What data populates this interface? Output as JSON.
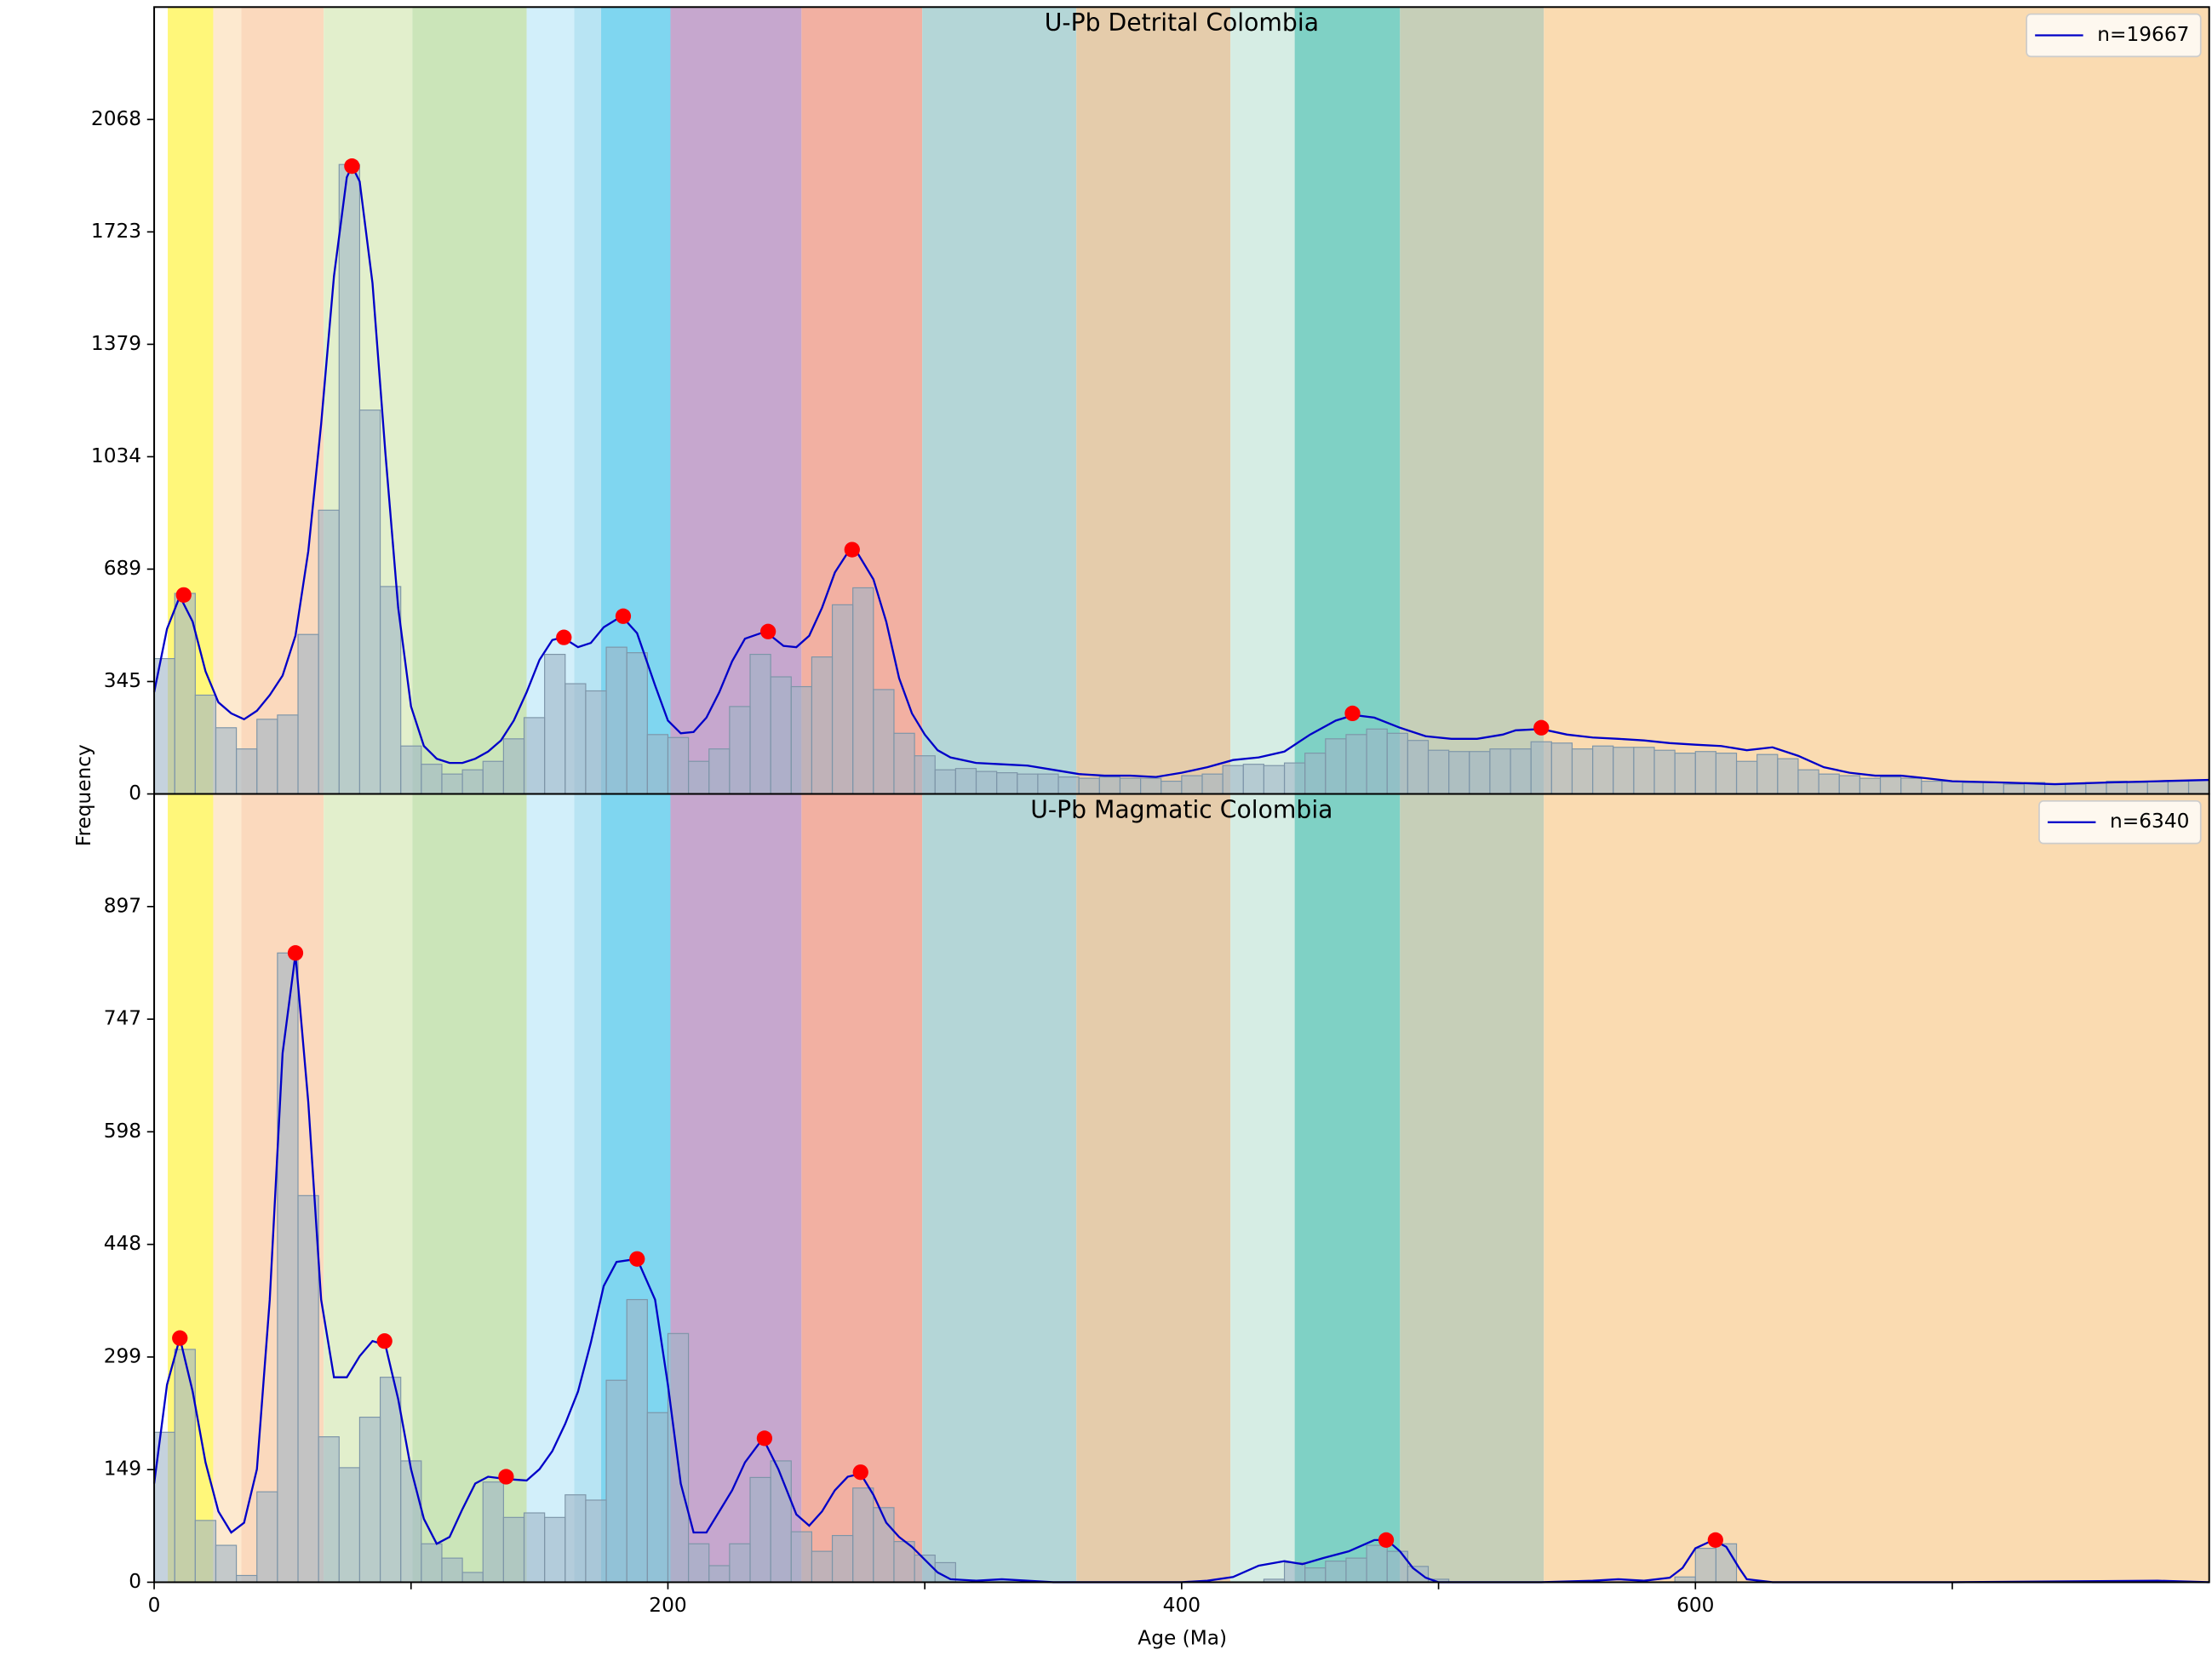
{
  "chart_data": [
    {
      "type": "histogram",
      "title": "U-Pb Detrital Colombia",
      "ylabel": "Frequency",
      "xlim": [
        0,
        800
      ],
      "ylim": [
        0,
        2412.7
      ],
      "yticks": [
        0,
        {
          "value": 344.67,
          "label": "345"
        },
        {
          "value": 689.33,
          "label": "689"
        },
        1034,
        {
          "value": 1378.67,
          "label": "1379"
        },
        {
          "value": 1723.33,
          "label": "1723"
        },
        2068
      ],
      "bands": [
        {
          "start": 5.3,
          "end": 23,
          "color": "#fff77a"
        },
        {
          "start": 23,
          "end": 33.9,
          "color": "#fde9cf"
        },
        {
          "start": 33.9,
          "end": 66,
          "color": "#fbd9bd"
        },
        {
          "start": 66,
          "end": 100.5,
          "color": "#e2efcc"
        },
        {
          "start": 100.5,
          "end": 145,
          "color": "#cbe5b9"
        },
        {
          "start": 145,
          "end": 163.5,
          "color": "#d2effa"
        },
        {
          "start": 163.5,
          "end": 174,
          "color": "#b8e4f3"
        },
        {
          "start": 174,
          "end": 201,
          "color": "#7fd6f0"
        },
        {
          "start": 201,
          "end": 252,
          "color": "#c6a7ce"
        },
        {
          "start": 252,
          "end": 299,
          "color": "#f2b0a2"
        },
        {
          "start": 299,
          "end": 359,
          "color": "#b4d6d7"
        },
        {
          "start": 359,
          "end": 419,
          "color": "#e5ccab"
        },
        {
          "start": 419,
          "end": 444,
          "color": "#d6ede4"
        },
        {
          "start": 444,
          "end": 485,
          "color": "#7fd1c5"
        },
        {
          "start": 485,
          "end": 541,
          "color": "#c6cfb8"
        },
        {
          "start": 541,
          "end": 800,
          "color": "#fadbb1"
        }
      ],
      "bins": [
        0,
        8,
        16,
        24,
        32,
        40,
        48,
        56,
        64,
        72,
        80,
        88,
        96,
        104,
        112,
        120,
        128,
        136,
        144,
        152,
        160,
        168,
        176,
        184,
        192,
        200,
        208,
        216,
        224,
        232,
        240,
        248,
        256,
        264,
        272,
        280,
        288,
        296,
        304,
        312,
        320,
        328,
        336,
        344,
        352,
        360,
        368,
        376,
        384,
        392,
        400,
        408,
        416,
        424,
        432,
        440,
        448,
        456,
        464,
        472,
        480,
        488,
        496,
        504,
        512,
        520,
        528,
        536,
        544,
        552,
        560,
        568,
        576,
        584,
        592,
        600,
        608,
        616,
        624,
        632,
        640,
        648,
        656,
        664,
        672,
        680,
        688,
        696,
        704,
        712,
        720,
        728,
        736,
        744,
        752,
        760,
        768,
        776,
        784,
        792,
        800
      ],
      "values": [
        415,
        615,
        303,
        203,
        138,
        229,
        242,
        489,
        870,
        1930,
        1177,
        636,
        147,
        91,
        61,
        74,
        100,
        169,
        234,
        428,
        338,
        316,
        450,
        433,
        182,
        173,
        100,
        138,
        268,
        428,
        359,
        329,
        420,
        580,
        632,
        320,
        186,
        117,
        74,
        78,
        69,
        65,
        61,
        61,
        52,
        48,
        52,
        48,
        48,
        39,
        56,
        61,
        87,
        91,
        87,
        95,
        125,
        169,
        182,
        199,
        186,
        164,
        134,
        130,
        130,
        138,
        138,
        160,
        156,
        138,
        147,
        143,
        143,
        134,
        125,
        130,
        125,
        100,
        121,
        108,
        74,
        61,
        56,
        48,
        52,
        48,
        39,
        39,
        35,
        35,
        30,
        35,
        30,
        30,
        35,
        39,
        35,
        39,
        39,
        43
      ],
      "bar_color": "#9fb4c7",
      "series": [
        {
          "name": "n=19667",
          "color": "#0000c8",
          "x": [
            0,
            5,
            10,
            15,
            20,
            25,
            30,
            35,
            40,
            45,
            50,
            55,
            60,
            65,
            70,
            75,
            77,
            80,
            85,
            90,
            95,
            100,
            105,
            110,
            115,
            120,
            125,
            130,
            135,
            140,
            145,
            150,
            155,
            159,
            165,
            170,
            175,
            182,
            188,
            195,
            200,
            205,
            210,
            215,
            220,
            225,
            230,
            238,
            245,
            250,
            255,
            260,
            265,
            270,
            273,
            280,
            285,
            290,
            295,
            300,
            305,
            310,
            320,
            330,
            340,
            350,
            360,
            370,
            380,
            390,
            400,
            410,
            420,
            430,
            440,
            450,
            460,
            467,
            475,
            485,
            495,
            505,
            515,
            525,
            530,
            540,
            550,
            560,
            570,
            580,
            590,
            600,
            610,
            620,
            630,
            640,
            650,
            660,
            670,
            680,
            690,
            700,
            720,
            740,
            760,
            780,
            800
          ],
          "values": [
            312,
            506,
            606,
            528,
            376,
            281,
            247,
            229,
            255,
            303,
            363,
            485,
            744,
            1134,
            1588,
            1891,
            1925,
            1878,
            1566,
            1047,
            571,
            268,
            147,
            108,
            95,
            95,
            108,
            130,
            164,
            225,
            312,
            411,
            472,
            480,
            450,
            463,
            511,
            545,
            493,
            333,
            225,
            186,
            190,
            234,
            312,
            407,
            476,
            498,
            454,
            450,
            485,
            571,
            679,
            740,
            749,
            658,
            528,
            355,
            247,
            182,
            134,
            112,
            95,
            91,
            87,
            74,
            61,
            56,
            56,
            52,
            65,
            82,
            104,
            112,
            130,
            182,
            225,
            242,
            234,
            203,
            177,
            169,
            169,
            182,
            195,
            199,
            182,
            173,
            169,
            164,
            156,
            151,
            147,
            134,
            143,
            117,
            82,
            65,
            56,
            56,
            48,
            39,
            35,
            30,
            35,
            39,
            43
          ]
        }
      ],
      "peaks": {
        "color": "#ff0000",
        "x": [
          11.5,
          77,
          159.5,
          182.6,
          239,
          271.7,
          466.5,
          540
        ],
        "values": [
          610,
          1925,
          480,
          545,
          498,
          749,
          247,
          203
        ]
      }
    },
    {
      "type": "histogram",
      "title": "U-Pb Magmatic Colombia",
      "xlabel": "Age (Ma)",
      "xlim": [
        0,
        800
      ],
      "ylim": [
        0,
        1046
      ],
      "xticks": [
        0,
        200,
        400,
        600
      ],
      "x_minor_ticks": [
        100,
        300,
        500,
        700
      ],
      "yticks": [
        0,
        {
          "value": 149.43,
          "label": "149"
        },
        {
          "value": 298.86,
          "label": "299"
        },
        {
          "value": 448.29,
          "label": "448"
        },
        {
          "value": 597.71,
          "label": "598"
        },
        {
          "value": 747.14,
          "label": "747"
        },
        {
          "value": 896.57,
          "label": "897"
        }
      ],
      "bands": [
        {
          "start": 5.3,
          "end": 23,
          "color": "#fff77a"
        },
        {
          "start": 23,
          "end": 33.9,
          "color": "#fde9cf"
        },
        {
          "start": 33.9,
          "end": 66,
          "color": "#fbd9bd"
        },
        {
          "start": 66,
          "end": 100.5,
          "color": "#e2efcc"
        },
        {
          "start": 100.5,
          "end": 145,
          "color": "#cbe5b9"
        },
        {
          "start": 145,
          "end": 163.5,
          "color": "#d2effa"
        },
        {
          "start": 163.5,
          "end": 174,
          "color": "#b8e4f3"
        },
        {
          "start": 174,
          "end": 201,
          "color": "#7fd6f0"
        },
        {
          "start": 201,
          "end": 252,
          "color": "#c6a7ce"
        },
        {
          "start": 252,
          "end": 299,
          "color": "#f2b0a2"
        },
        {
          "start": 299,
          "end": 359,
          "color": "#b4d6d7"
        },
        {
          "start": 359,
          "end": 419,
          "color": "#e5ccab"
        },
        {
          "start": 419,
          "end": 444,
          "color": "#d6ede4"
        },
        {
          "start": 444,
          "end": 485,
          "color": "#7fd1c5"
        },
        {
          "start": 485,
          "end": 541,
          "color": "#c6cfb8"
        },
        {
          "start": 541,
          "end": 800,
          "color": "#fadbb1"
        }
      ],
      "bins": [
        0,
        8,
        16,
        24,
        32,
        40,
        48,
        56,
        64,
        72,
        80,
        88,
        96,
        104,
        112,
        120,
        128,
        136,
        144,
        152,
        160,
        168,
        176,
        184,
        192,
        200,
        208,
        216,
        224,
        232,
        240,
        248,
        256,
        264,
        272,
        280,
        288,
        296,
        304,
        312,
        320,
        328,
        336,
        344,
        352,
        360,
        368,
        376,
        384,
        392,
        400,
        408,
        416,
        424,
        432,
        440,
        448,
        456,
        464,
        472,
        480,
        488,
        496,
        504,
        512,
        520,
        528,
        536,
        544,
        552,
        560,
        568,
        576,
        584,
        592,
        600,
        608,
        616,
        624,
        632,
        640,
        648,
        656,
        664,
        672,
        680,
        688,
        696,
        704,
        712,
        720,
        728,
        736,
        744,
        752,
        760,
        768,
        776,
        784,
        792,
        800
      ],
      "values": [
        199,
        309,
        82,
        49,
        9,
        120,
        835,
        513,
        193,
        152,
        219,
        272,
        161,
        51,
        32,
        13,
        133,
        86,
        92,
        86,
        116,
        109,
        268,
        375,
        225,
        330,
        51,
        22,
        51,
        139,
        161,
        67,
        41,
        62,
        125,
        99,
        54,
        36,
        26,
        0,
        0,
        0,
        0,
        0,
        0,
        0,
        0,
        0,
        0,
        0,
        0,
        0,
        0,
        0,
        4,
        26,
        19,
        28,
        32,
        49,
        41,
        21,
        4,
        0,
        0,
        0,
        0,
        0,
        0,
        0,
        0,
        0,
        0,
        0,
        7,
        45,
        51,
        0,
        0,
        0,
        0,
        0,
        0,
        0,
        0,
        0,
        0,
        0,
        0,
        0,
        0,
        0,
        0,
        0,
        0,
        0,
        0,
        0,
        0,
        0
      ],
      "bar_color": "#9fb4c7",
      "series": [
        {
          "name": "n=6340",
          "color": "#0000c8",
          "x": [
            0,
            5,
            10,
            15,
            20,
            25,
            30,
            35,
            40,
            45,
            50,
            55,
            60,
            65,
            70,
            75,
            80,
            85,
            90,
            95,
            100,
            105,
            110,
            115,
            120,
            125,
            130,
            137,
            145,
            150,
            155,
            160,
            165,
            170,
            175,
            180,
            188,
            195,
            200,
            205,
            210,
            215,
            220,
            225,
            230,
            237,
            243,
            250,
            255,
            260,
            265,
            270,
            275,
            280,
            285,
            290,
            295,
            300,
            305,
            310,
            320,
            330,
            340,
            350,
            400,
            410,
            420,
            430,
            440,
            447,
            455,
            465,
            475,
            480,
            485,
            490,
            495,
            500,
            540,
            560,
            570,
            580,
            590,
            595,
            600,
            607,
            612,
            617,
            620,
            630,
            700,
            780,
            800
          ],
          "values": [
            131,
            262,
            324,
            253,
            159,
            94,
            66,
            79,
            150,
            375,
            702,
            833,
            637,
            375,
            272,
            272,
            300,
            320,
            315,
            243,
            150,
            84,
            51,
            60,
            97,
            131,
            140,
            137,
            135,
            150,
            174,
            210,
            253,
            318,
            393,
            425,
            429,
            375,
            262,
            131,
            66,
            66,
            94,
            122,
            159,
            191,
            150,
            90,
            75,
            94,
            122,
            140,
            144,
            116,
            79,
            60,
            47,
            30,
            13,
            4,
            2,
            4,
            2,
            0,
            0,
            2,
            7,
            22,
            28,
            24,
            32,
            41,
            56,
            56,
            41,
            19,
            6,
            0,
            0,
            2,
            4,
            2,
            6,
            19,
            45,
            56,
            47,
            19,
            4,
            0,
            0,
            2,
            0
          ]
        }
      ],
      "peaks": {
        "color": "#ff0000",
        "x": [
          10,
          55,
          89.7,
          137,
          188,
          237.6,
          275,
          479.6,
          607.8
        ],
        "values": [
          324,
          835,
          320,
          140,
          429,
          191,
          146,
          56,
          56
        ]
      }
    }
  ]
}
